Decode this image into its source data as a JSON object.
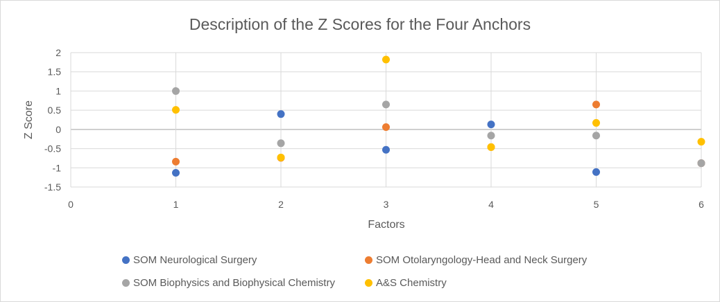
{
  "chart_data": {
    "type": "scatter",
    "title": "Description of the Z Scores for the Four Anchors",
    "xlabel": "Factors",
    "ylabel": "Z Score",
    "xlim": [
      0,
      6
    ],
    "ylim": [
      -1.5,
      2
    ],
    "xticks": [
      0,
      1,
      2,
      3,
      4,
      5,
      6
    ],
    "yticks": [
      -1.5,
      -1,
      -0.5,
      0,
      0.5,
      1,
      1.5,
      2
    ],
    "ytick_labels": [
      "-1.5",
      "-1",
      "-0.5",
      "0",
      "0.5",
      "1",
      "1.5",
      "2"
    ],
    "grid": true,
    "legend_position": "bottom",
    "series": [
      {
        "name": "SOM Neurological Surgery",
        "color": "#4472c4",
        "points": [
          [
            1,
            -1.13
          ],
          [
            2,
            0.4
          ],
          [
            3,
            -0.53
          ],
          [
            4,
            0.13
          ],
          [
            5,
            -1.11
          ],
          [
            6,
            -0.88
          ]
        ]
      },
      {
        "name": "SOM Otolaryngology-Head and Neck Surgery",
        "color": "#ed7d31",
        "points": [
          [
            1,
            -0.84
          ],
          [
            2,
            -0.74
          ],
          [
            3,
            0.06
          ],
          [
            4,
            -0.46
          ],
          [
            5,
            0.65
          ],
          [
            6,
            -0.88
          ]
        ]
      },
      {
        "name": "SOM Biophysics and Biophysical Chemistry",
        "color": "#a5a5a5",
        "points": [
          [
            1,
            1.0
          ],
          [
            2,
            -0.36
          ],
          [
            3,
            0.65
          ],
          [
            4,
            -0.16
          ],
          [
            5,
            -0.16
          ],
          [
            6,
            -0.88
          ]
        ]
      },
      {
        "name": "A&S Chemistry",
        "color": "#ffc000",
        "points": [
          [
            1,
            0.51
          ],
          [
            2,
            -0.73
          ],
          [
            3,
            1.82
          ],
          [
            4,
            -0.46
          ],
          [
            5,
            0.17
          ],
          [
            6,
            -0.32
          ]
        ]
      }
    ]
  }
}
